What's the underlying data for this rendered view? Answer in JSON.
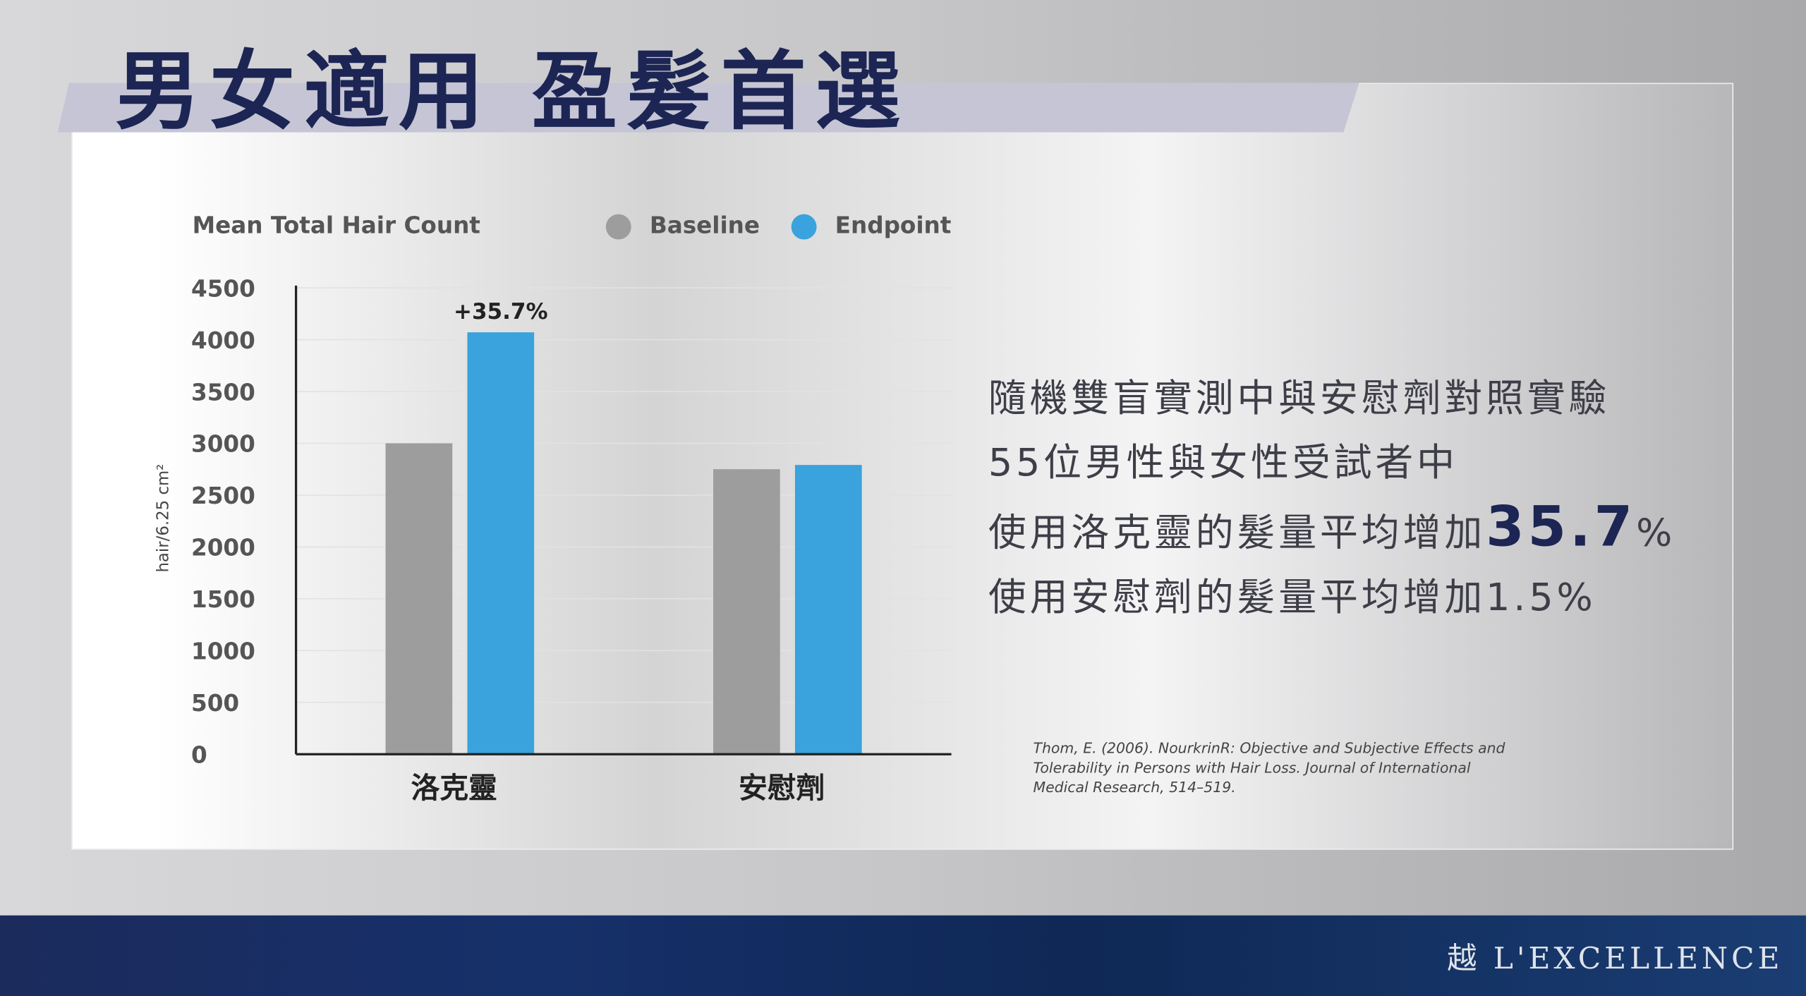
{
  "header": {
    "title": "男女適用 盈髮首選"
  },
  "chart_data": {
    "type": "bar",
    "title": "Mean Total Hair Count",
    "y_label": "hair/6.25 cm²",
    "categories": [
      "洛克靈",
      "安慰劑"
    ],
    "series": [
      {
        "name": "Baseline",
        "color": "#9d9d9e",
        "values": [
          3000,
          2750
        ]
      },
      {
        "name": "Endpoint",
        "color": "#3aa2dc",
        "values": [
          4071,
          2791
        ]
      }
    ],
    "annotations": [
      "+35.7%"
    ],
    "ylim": [
      0,
      4500
    ],
    "yticks": [
      0,
      500,
      1000,
      1500,
      2000,
      2500,
      3000,
      3500,
      4000,
      4500
    ],
    "grid": true
  },
  "summary": {
    "lines": [
      "隨機雙盲實測中與安慰劑對照實驗",
      "55位男性與女性受試者中"
    ],
    "highlight": {
      "prefix": "使用洛克靈的髮量平均增加",
      "number": "35.7",
      "unit": "%"
    },
    "last": "使用安慰劑的髮量平均增加1.5%"
  },
  "citation": [
    "Thom, E. (2006). NourkrinR: Objective and Subjective Effects and",
    "Tolerability in Persons with Hair Loss. Journal of International",
    "Medical Research, 514–519."
  ],
  "footer": {
    "logo": "越 L'EXCELLENCE"
  }
}
